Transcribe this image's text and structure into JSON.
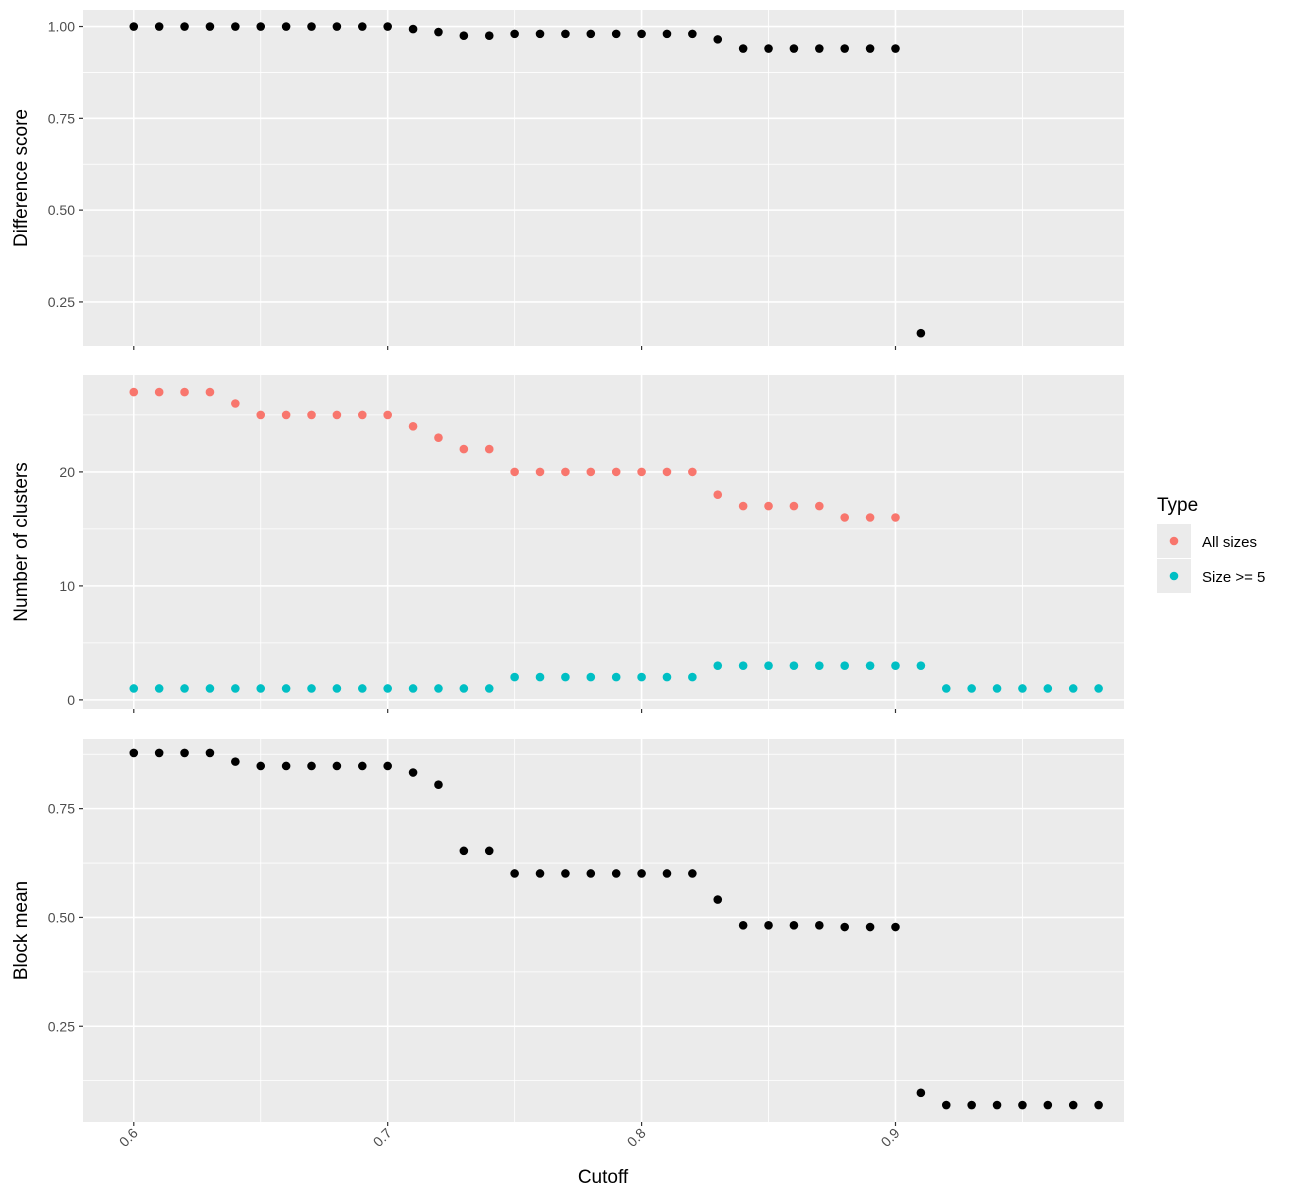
{
  "chart_data": {
    "type": "scatter",
    "xlabel": "Cutoff",
    "x_ticks": [
      "0.6",
      "0.7",
      "0.8",
      "0.9"
    ],
    "xlim": [
      0.58,
      0.99
    ],
    "grid": true,
    "legend": {
      "title": "Type",
      "placement": "right",
      "entries": [
        {
          "label": "All sizes",
          "color": "#F8766D"
        },
        {
          "label": "Size >= 5",
          "color": "#00BFC4"
        }
      ]
    },
    "panels": [
      {
        "ylabel": "Difference score",
        "ylim": [
          0.13,
          1.045
        ],
        "y_ticks": [
          "0.25",
          "0.50",
          "0.75",
          "1.00"
        ],
        "series": [
          {
            "color": "#000000",
            "x": [
              0.6,
              0.61,
              0.62,
              0.63,
              0.64,
              0.65,
              0.66,
              0.67,
              0.68,
              0.69,
              0.7,
              0.71,
              0.72,
              0.73,
              0.74,
              0.75,
              0.76,
              0.77,
              0.78,
              0.79,
              0.8,
              0.81,
              0.82,
              0.83,
              0.84,
              0.85,
              0.86,
              0.87,
              0.88,
              0.89,
              0.9,
              0.91
            ],
            "y": [
              1.0,
              1.0,
              1.0,
              1.0,
              1.0,
              1.0,
              1.0,
              1.0,
              1.0,
              1.0,
              1.0,
              0.993,
              0.985,
              0.975,
              0.975,
              0.98,
              0.98,
              0.98,
              0.98,
              0.98,
              0.98,
              0.98,
              0.98,
              0.965,
              0.94,
              0.94,
              0.94,
              0.94,
              0.94,
              0.94,
              0.94,
              0.165
            ]
          }
        ]
      },
      {
        "ylabel": "Number of clusters",
        "ylim": [
          -0.8,
          28.5
        ],
        "y_ticks": [
          "0",
          "10",
          "20"
        ],
        "series": [
          {
            "name": "All sizes",
            "color": "#F8766D",
            "x": [
              0.6,
              0.61,
              0.62,
              0.63,
              0.64,
              0.65,
              0.66,
              0.67,
              0.68,
              0.69,
              0.7,
              0.71,
              0.72,
              0.73,
              0.74,
              0.75,
              0.76,
              0.77,
              0.78,
              0.79,
              0.8,
              0.81,
              0.82,
              0.83,
              0.84,
              0.85,
              0.86,
              0.87,
              0.88,
              0.89,
              0.9
            ],
            "y": [
              27,
              27,
              27,
              27,
              26,
              25,
              25,
              25,
              25,
              25,
              25,
              24,
              23,
              22,
              22,
              20,
              20,
              20,
              20,
              20,
              20,
              20,
              20,
              18,
              17,
              17,
              17,
              17,
              16,
              16,
              16
            ]
          },
          {
            "name": "Size >= 5",
            "color": "#00BFC4",
            "x": [
              0.6,
              0.61,
              0.62,
              0.63,
              0.64,
              0.65,
              0.66,
              0.67,
              0.68,
              0.69,
              0.7,
              0.71,
              0.72,
              0.73,
              0.74,
              0.75,
              0.76,
              0.77,
              0.78,
              0.79,
              0.8,
              0.81,
              0.82,
              0.83,
              0.84,
              0.85,
              0.86,
              0.87,
              0.88,
              0.89,
              0.9,
              0.91,
              0.92,
              0.93,
              0.94,
              0.95,
              0.96,
              0.97,
              0.98
            ],
            "y": [
              1,
              1,
              1,
              1,
              1,
              1,
              1,
              1,
              1,
              1,
              1,
              1,
              1,
              1,
              1,
              2,
              2,
              2,
              2,
              2,
              2,
              2,
              2,
              3,
              3,
              3,
              3,
              3,
              3,
              3,
              3,
              3,
              1,
              1,
              1,
              1,
              1,
              1,
              1
            ]
          }
        ]
      },
      {
        "ylabel": "Block mean",
        "ylim": [
          0.03,
          0.91
        ],
        "y_ticks": [
          "0.25",
          "0.50",
          "0.75"
        ],
        "series": [
          {
            "color": "#000000",
            "x": [
              0.6,
              0.61,
              0.62,
              0.63,
              0.64,
              0.65,
              0.66,
              0.67,
              0.68,
              0.69,
              0.7,
              0.71,
              0.72,
              0.73,
              0.74,
              0.75,
              0.76,
              0.77,
              0.78,
              0.79,
              0.8,
              0.81,
              0.82,
              0.83,
              0.84,
              0.85,
              0.86,
              0.87,
              0.88,
              0.89,
              0.9,
              0.91,
              0.92,
              0.93,
              0.94,
              0.95,
              0.96,
              0.97,
              0.98
            ],
            "y": [
              0.878,
              0.878,
              0.878,
              0.878,
              0.858,
              0.848,
              0.848,
              0.848,
              0.848,
              0.848,
              0.848,
              0.833,
              0.805,
              0.653,
              0.653,
              0.601,
              0.601,
              0.601,
              0.601,
              0.601,
              0.601,
              0.601,
              0.601,
              0.541,
              0.482,
              0.482,
              0.482,
              0.482,
              0.478,
              0.478,
              0.478,
              0.097,
              0.069,
              0.069,
              0.069,
              0.069,
              0.069,
              0.069,
              0.069
            ]
          }
        ]
      }
    ]
  }
}
